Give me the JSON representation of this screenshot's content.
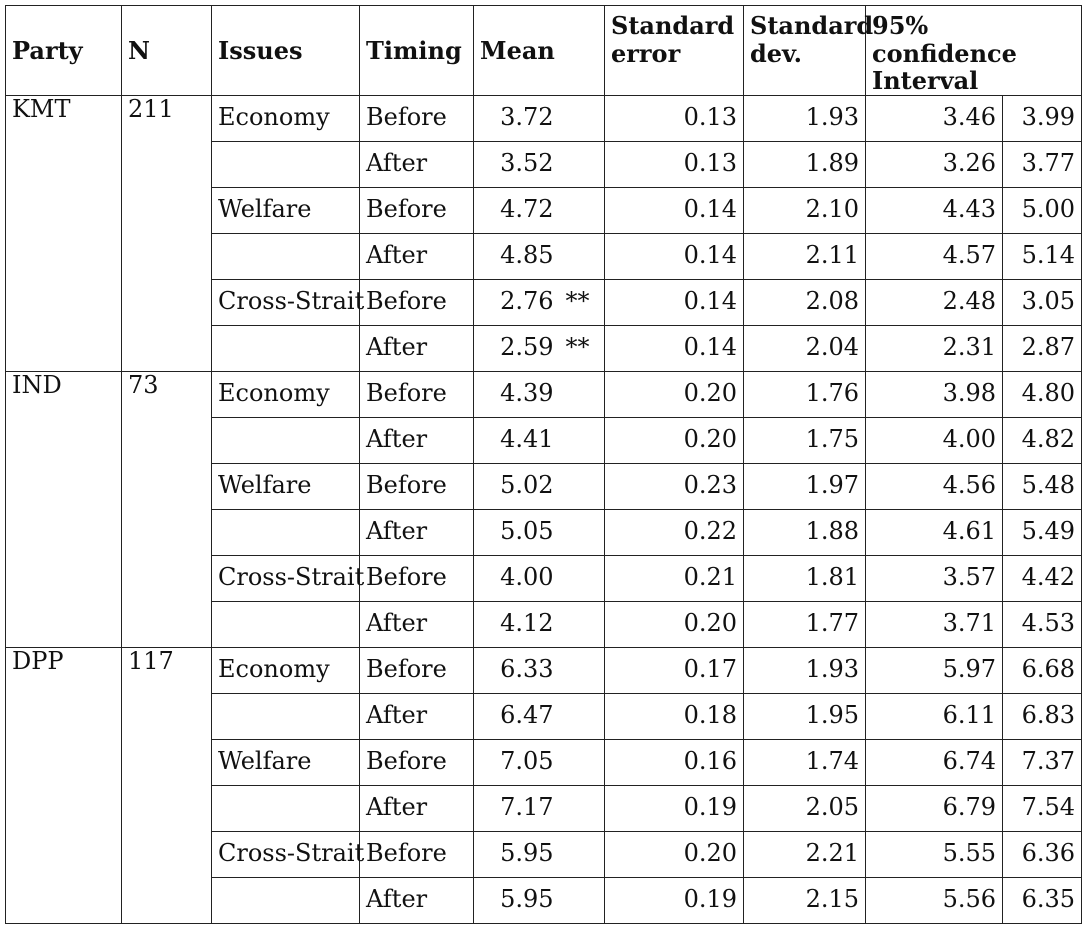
{
  "headers": {
    "party": "Party",
    "n": "N",
    "issues": "Issues",
    "timing": "Timing",
    "mean": "Mean",
    "se": "Standard error",
    "sd": "Standard dev.",
    "ci": "95% confidence Interval"
  },
  "groups": [
    {
      "party": "KMT",
      "n": "211",
      "rows": [
        {
          "issue": "Economy",
          "timing": "Before",
          "mean": "3.72",
          "sig": "",
          "se": "0.13",
          "sd": "1.93",
          "ci_low": "3.46",
          "ci_high": "3.99"
        },
        {
          "issue": "",
          "timing": "After",
          "mean": "3.52",
          "sig": "",
          "se": "0.13",
          "sd": "1.89",
          "ci_low": "3.26",
          "ci_high": "3.77"
        },
        {
          "issue": "Welfare",
          "timing": "Before",
          "mean": "4.72",
          "sig": "",
          "se": "0.14",
          "sd": "2.10",
          "ci_low": "4.43",
          "ci_high": "5.00"
        },
        {
          "issue": "",
          "timing": "After",
          "mean": "4.85",
          "sig": "",
          "se": "0.14",
          "sd": "2.11",
          "ci_low": "4.57",
          "ci_high": "5.14"
        },
        {
          "issue": "Cross-Strait",
          "timing": "Before",
          "mean": "2.76",
          "sig": "**",
          "se": "0.14",
          "sd": "2.08",
          "ci_low": "2.48",
          "ci_high": "3.05"
        },
        {
          "issue": "",
          "timing": "After",
          "mean": "2.59",
          "sig": "**",
          "se": "0.14",
          "sd": "2.04",
          "ci_low": "2.31",
          "ci_high": "2.87"
        }
      ]
    },
    {
      "party": "IND",
      "n": "73",
      "rows": [
        {
          "issue": "Economy",
          "timing": "Before",
          "mean": "4.39",
          "sig": "",
          "se": "0.20",
          "sd": "1.76",
          "ci_low": "3.98",
          "ci_high": "4.80"
        },
        {
          "issue": "",
          "timing": "After",
          "mean": "4.41",
          "sig": "",
          "se": "0.20",
          "sd": "1.75",
          "ci_low": "4.00",
          "ci_high": "4.82"
        },
        {
          "issue": "Welfare",
          "timing": "Before",
          "mean": "5.02",
          "sig": "",
          "se": "0.23",
          "sd": "1.97",
          "ci_low": "4.56",
          "ci_high": "5.48"
        },
        {
          "issue": "",
          "timing": "After",
          "mean": "5.05",
          "sig": "",
          "se": "0.22",
          "sd": "1.88",
          "ci_low": "4.61",
          "ci_high": "5.49"
        },
        {
          "issue": "Cross-Strait",
          "timing": "Before",
          "mean": "4.00",
          "sig": "",
          "se": "0.21",
          "sd": "1.81",
          "ci_low": "3.57",
          "ci_high": "4.42"
        },
        {
          "issue": "",
          "timing": "After",
          "mean": "4.12",
          "sig": "",
          "se": "0.20",
          "sd": "1.77",
          "ci_low": "3.71",
          "ci_high": "4.53"
        }
      ]
    },
    {
      "party": "DPP",
      "n": "117",
      "rows": [
        {
          "issue": "Economy",
          "timing": "Before",
          "mean": "6.33",
          "sig": "",
          "se": "0.17",
          "sd": "1.93",
          "ci_low": "5.97",
          "ci_high": "6.68"
        },
        {
          "issue": "",
          "timing": "After",
          "mean": "6.47",
          "sig": "",
          "se": "0.18",
          "sd": "1.95",
          "ci_low": "6.11",
          "ci_high": "6.83"
        },
        {
          "issue": "Welfare",
          "timing": "Before",
          "mean": "7.05",
          "sig": "",
          "se": "0.16",
          "sd": "1.74",
          "ci_low": "6.74",
          "ci_high": "7.37"
        },
        {
          "issue": "",
          "timing": "After",
          "mean": "7.17",
          "sig": "",
          "se": "0.19",
          "sd": "2.05",
          "ci_low": "6.79",
          "ci_high": "7.54"
        },
        {
          "issue": "Cross-Strait",
          "timing": "Before",
          "mean": "5.95",
          "sig": "",
          "se": "0.20",
          "sd": "2.21",
          "ci_low": "5.55",
          "ci_high": "6.36"
        },
        {
          "issue": "",
          "timing": "After",
          "mean": "5.95",
          "sig": "",
          "se": "0.19",
          "sd": "2.15",
          "ci_low": "5.56",
          "ci_high": "6.35"
        }
      ]
    }
  ]
}
